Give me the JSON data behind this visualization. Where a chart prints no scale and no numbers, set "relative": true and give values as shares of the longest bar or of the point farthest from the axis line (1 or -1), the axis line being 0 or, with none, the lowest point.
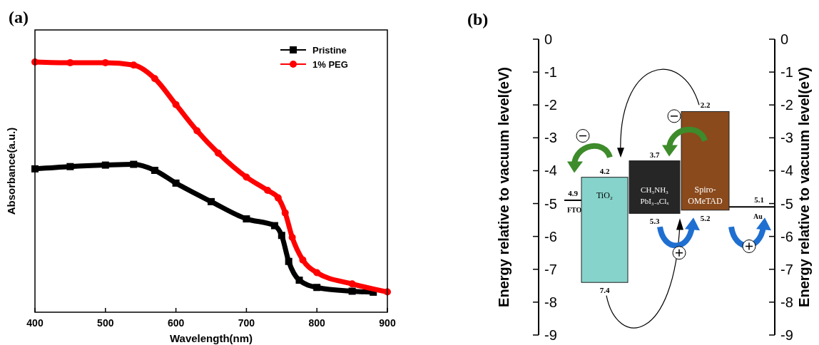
{
  "chart_data": [
    {
      "type": "line",
      "xlabel": "Wavelength(nm)",
      "ylabel": "Absorbance(a.u.)",
      "title": "(a)",
      "relative": true,
      "xlim": [
        400,
        900
      ],
      "xticks": [
        400,
        500,
        600,
        700,
        800,
        900
      ],
      "legend": "top right",
      "series": [
        {
          "name": "Pristine",
          "color": "#000000",
          "marker": "square",
          "x": [
            400,
            450,
            500,
            540,
            570,
            600,
            650,
            700,
            740,
            750,
            760,
            775,
            800,
            850,
            880
          ],
          "values": [
            0.573,
            0.582,
            0.588,
            0.591,
            0.567,
            0.516,
            0.442,
            0.373,
            0.346,
            0.307,
            0.203,
            0.128,
            0.099,
            0.084,
            0.08
          ]
        },
        {
          "name": "1% PEG",
          "color": "#ff0000",
          "marker": "circle",
          "x": [
            400,
            450,
            500,
            540,
            570,
            600,
            630,
            660,
            700,
            730,
            745,
            755,
            765,
            780,
            800,
            850,
            900
          ],
          "values": [
            1.0,
            0.997,
            0.997,
            0.988,
            0.934,
            0.83,
            0.725,
            0.636,
            0.54,
            0.487,
            0.457,
            0.397,
            0.299,
            0.209,
            0.158,
            0.113,
            0.081
          ]
        }
      ]
    },
    {
      "type": "bar",
      "title": "(b)",
      "ylabel": "Energy relative to vacuum level(eV)",
      "y2label": "Energy relative to vacuum level(eV)",
      "ylim": [
        -9,
        0
      ],
      "yticks": [
        0,
        -1,
        -2,
        -3,
        -4,
        -5,
        -6,
        -7,
        -8,
        -9
      ],
      "y2lim": [
        -9,
        0
      ],
      "y2ticks": [
        0,
        -1,
        -2,
        -3,
        -4,
        -5,
        -6,
        -7,
        -8,
        -9
      ],
      "categories": [
        "TiO₂",
        "CH₃NH₃PbI₃₋ₓClₓ",
        "Spiro-OMeTAD"
      ],
      "base": [
        -7.4,
        -5.3,
        -5.2
      ],
      "values": [
        3.2,
        1.6,
        3.0
      ],
      "colors": [
        "#86d3cb",
        "#262626",
        "#8a4a1c"
      ],
      "ref_lines": [
        {
          "axis": "y",
          "value": -4.9,
          "label": "FTO"
        },
        {
          "axis": "y",
          "value": -5.1,
          "label": "Au"
        }
      ],
      "annotations": [
        {
          "text": "4.2",
          "x": "TiO₂",
          "y": -4.2
        },
        {
          "text": "7.4",
          "x": "TiO₂",
          "y": -7.4
        },
        {
          "text": "3.7",
          "x": "CH₃NH₃PbI₃₋ₓClₓ",
          "y": -3.7
        },
        {
          "text": "5.3",
          "x": "CH₃NH₃PbI₃₋ₓClₓ",
          "y": -5.3
        },
        {
          "text": "2.2",
          "x": "Spiro-OMeTAD",
          "y": -2.2
        },
        {
          "text": "5.2",
          "x": "Spiro-OMeTAD",
          "y": -5.2
        },
        {
          "text": "4.9",
          "y": -4.9
        },
        {
          "text": "5.1",
          "y": -5.1
        }
      ]
    }
  ]
}
